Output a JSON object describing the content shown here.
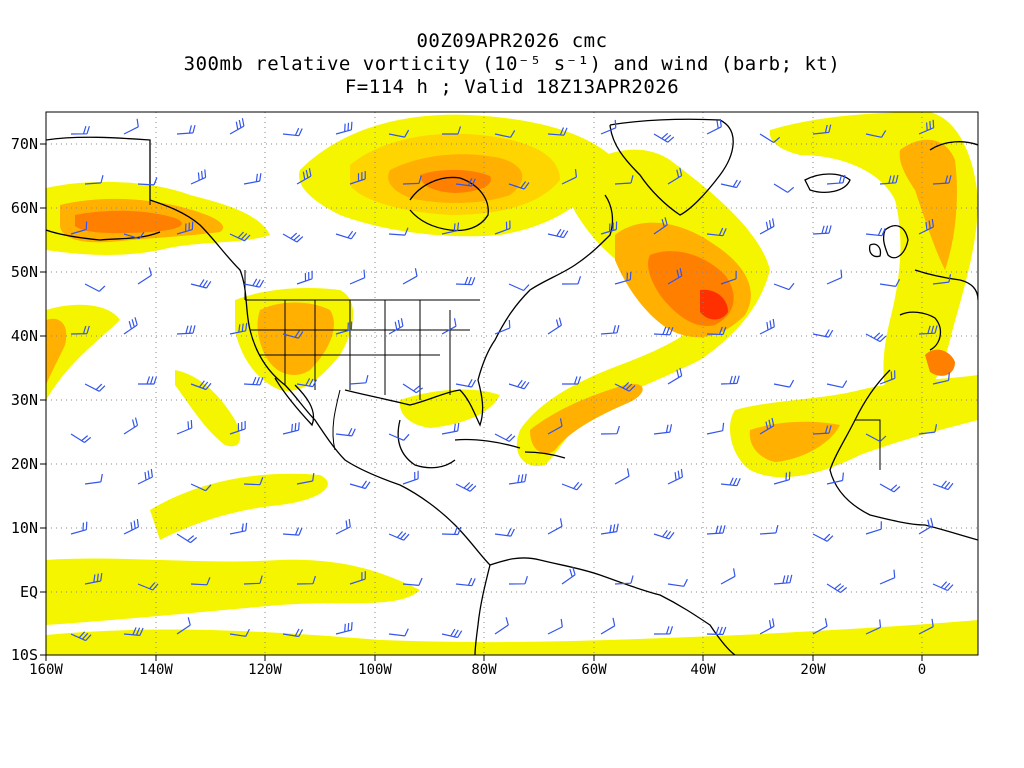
{
  "title": {
    "line1": "00Z09APR2026 cmc",
    "line2": "300mb relative vorticity (10⁻⁵ s⁻¹) and wind (barb; kt)",
    "line3": "F=114 h ; Valid 18Z13APR2026"
  },
  "axes": {
    "lat_labels": [
      "70N",
      "60N",
      "50N",
      "40N",
      "30N",
      "20N",
      "10N",
      "EQ",
      "10S"
    ],
    "lon_labels": [
      "160W",
      "140W",
      "120W",
      "100W",
      "80W",
      "60W",
      "40W",
      "20W",
      "0"
    ]
  },
  "colors": {
    "shade_low": "#f5f500",
    "shade_mid1": "#ffd500",
    "shade_mid2": "#ffb000",
    "shade_high": "#ff8000",
    "shade_max": "#ff3000",
    "barb": "#3355ee",
    "coast": "#000000",
    "grid": "#888888"
  },
  "map": {
    "lon_min": -160,
    "lon_max": 10,
    "lat_min": -10,
    "lat_max": 75,
    "gridlines": "dotted"
  }
}
